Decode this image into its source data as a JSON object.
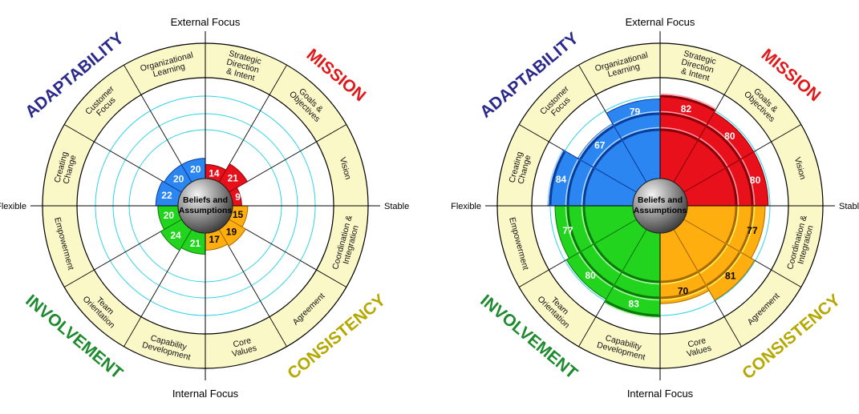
{
  "chart_data": [
    {
      "type": "radial-bar",
      "center_label": [
        "Beliefs and",
        "Assumptions"
      ],
      "axis_labels": {
        "top": "External Focus",
        "bottom": "Internal Focus",
        "left": "Flexible",
        "right": "Stable"
      },
      "traits": [
        {
          "name": "MISSION",
          "color": "#e01a1a"
        },
        {
          "name": "CONSISTENCY",
          "color": "#b5a800"
        },
        {
          "name": "INVOLVEMENT",
          "color": "#1e8a2e"
        },
        {
          "name": "ADAPTABILITY",
          "color": "#2b2a8c"
        }
      ],
      "dimensions": [
        {
          "label": [
            "Strategic",
            "Direction",
            "& Intent"
          ],
          "value": 14,
          "trait": "Mission"
        },
        {
          "label": [
            "Goals &",
            "Objectives"
          ],
          "value": 21,
          "trait": "Mission"
        },
        {
          "label": [
            "Vision"
          ],
          "value": 9,
          "trait": "Mission"
        },
        {
          "label": [
            "Coordination &",
            "Integration"
          ],
          "value": 15,
          "trait": "Consistency"
        },
        {
          "label": [
            "Agreement"
          ],
          "value": 19,
          "trait": "Consistency"
        },
        {
          "label": [
            "Core",
            "Values"
          ],
          "value": 17,
          "trait": "Consistency"
        },
        {
          "label": [
            "Capability",
            "Development"
          ],
          "value": 21,
          "trait": "Involvement"
        },
        {
          "label": [
            "Team",
            "Orientation"
          ],
          "value": 24,
          "trait": "Involvement"
        },
        {
          "label": [
            "Empowerment"
          ],
          "value": 20,
          "trait": "Involvement"
        },
        {
          "label": [
            "Creating",
            "Change"
          ],
          "value": 22,
          "trait": "Adaptability"
        },
        {
          "label": [
            "Customer",
            "Focus"
          ],
          "value": 20,
          "trait": "Adaptability"
        },
        {
          "label": [
            "Organizational",
            "Learning"
          ],
          "value": 20,
          "trait": "Adaptability"
        }
      ]
    },
    {
      "type": "radial-bar",
      "center_label": [
        "Beliefs and",
        "Assumptions"
      ],
      "axis_labels": {
        "top": "External Focus",
        "bottom": "Internal Focus",
        "left": "Flexible",
        "right": "Stable"
      },
      "traits": [
        {
          "name": "MISSION",
          "color": "#e01a1a"
        },
        {
          "name": "CONSISTENCY",
          "color": "#b5a800"
        },
        {
          "name": "INVOLVEMENT",
          "color": "#1e8a2e"
        },
        {
          "name": "ADAPTABILITY",
          "color": "#2b2a8c"
        }
      ],
      "dimensions": [
        {
          "label": [
            "Strategic",
            "Direction",
            "& Intent"
          ],
          "value": 82,
          "trait": "Mission"
        },
        {
          "label": [
            "Goals &",
            "Objectives"
          ],
          "value": 80,
          "trait": "Mission"
        },
        {
          "label": [
            "Vision"
          ],
          "value": 80,
          "trait": "Mission"
        },
        {
          "label": [
            "Coordination &",
            "Integration"
          ],
          "value": 77,
          "trait": "Consistency"
        },
        {
          "label": [
            "Agreement"
          ],
          "value": 81,
          "trait": "Consistency"
        },
        {
          "label": [
            "Core",
            "Values"
          ],
          "value": 70,
          "trait": "Consistency"
        },
        {
          "label": [
            "Capability",
            "Development"
          ],
          "value": 83,
          "trait": "Involvement"
        },
        {
          "label": [
            "Team",
            "Orientation"
          ],
          "value": 80,
          "trait": "Involvement"
        },
        {
          "label": [
            "Empowerment"
          ],
          "value": 77,
          "trait": "Involvement"
        },
        {
          "label": [
            "Creating",
            "Change"
          ],
          "value": 84,
          "trait": "Adaptability"
        },
        {
          "label": [
            "Customer",
            "Focus"
          ],
          "value": 67,
          "trait": "Adaptability"
        },
        {
          "label": [
            "Organizational",
            "Learning"
          ],
          "value": 79,
          "trait": "Adaptability"
        }
      ]
    }
  ]
}
